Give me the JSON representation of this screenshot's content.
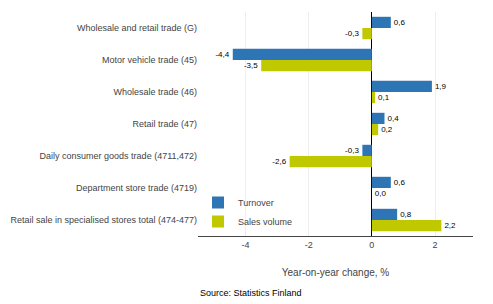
{
  "chart_data": {
    "type": "bar",
    "orientation": "horizontal",
    "categories": [
      "Wholesale and retail trade (G)",
      "Motor vehicle trade (45)",
      "Wholesale trade (46)",
      "Retail trade (47)",
      "Daily consumer goods trade (4711,472)",
      "Department store trade (4719)",
      "Retail sale in specialised stores total (474-477)"
    ],
    "series": [
      {
        "name": "Turnover",
        "color": "#2E75B6",
        "values": [
          0.6,
          -4.4,
          1.9,
          0.4,
          -0.3,
          0.6,
          0.8
        ],
        "value_labels": [
          "0,6",
          "-4,4",
          "1,9",
          "0,4",
          "-0,3",
          "0,6",
          "0,8"
        ]
      },
      {
        "name": "Sales volume",
        "color": "#C0C800",
        "values": [
          -0.3,
          -3.5,
          0.1,
          0.2,
          -2.6,
          0.0,
          2.2
        ],
        "value_labels": [
          "-0,3",
          "-3,5",
          "0,1",
          "0,2",
          "-2,6",
          "0,0",
          "2,2"
        ]
      }
    ],
    "xlabel": "Year-on-year change, %",
    "xlim": [
      -5.5,
      3.2
    ],
    "xticks": [
      -4,
      -2,
      0,
      2
    ],
    "grid": true,
    "legend": "lower left",
    "data_labels": true,
    "annotations": [
      "Source: Statistics Finland"
    ]
  }
}
